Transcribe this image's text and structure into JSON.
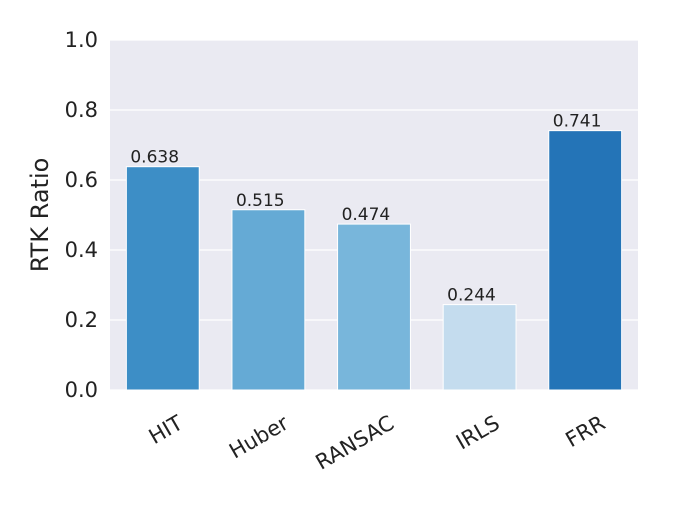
{
  "chart_data": {
    "type": "bar",
    "categories": [
      "HIT",
      "Huber",
      "RANSAC",
      "IRLS",
      "FRR"
    ],
    "values": [
      0.638,
      0.515,
      0.474,
      0.244,
      0.741
    ],
    "value_labels": [
      "0.638",
      "0.515",
      "0.474",
      "0.244",
      "0.741"
    ],
    "colors": [
      "#3d8ec6",
      "#65aad5",
      "#78b6db",
      "#c4dcee",
      "#2474b7"
    ],
    "ylabel": "RTK Ratio",
    "xlabel": "",
    "ylim": [
      0,
      1.0
    ],
    "yticks": [
      "0.0",
      "0.2",
      "0.4",
      "0.6",
      "0.8",
      "1.0"
    ],
    "x_tick_rotation_deg": -30,
    "grid": true,
    "background": "#eaeaf2"
  }
}
